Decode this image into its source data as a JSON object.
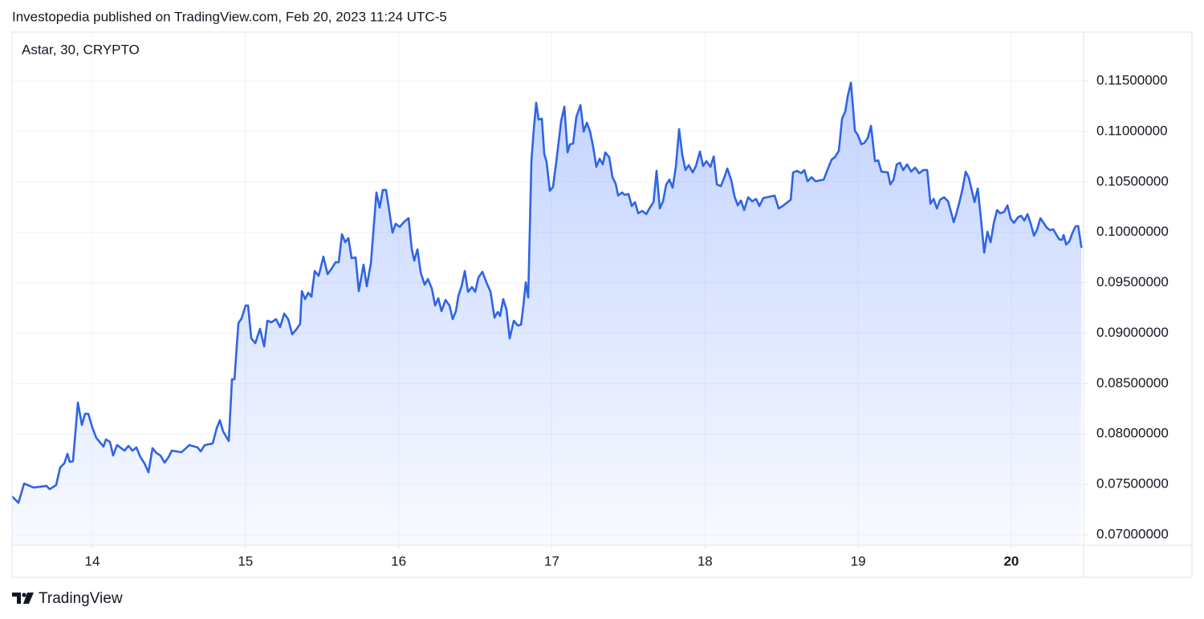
{
  "header": "Investopedia published on TradingView.com, Feb 20, 2023 11:24 UTC-5",
  "footer": "TradingView",
  "chart_data": {
    "type": "area",
    "title": "Astar, 30, CRYPTO",
    "color": "#2f64e6",
    "grid": true,
    "xlim": [
      13.476,
      20.472
    ],
    "ylim": [
      0.06897,
      0.11985
    ],
    "xticks": [
      14,
      15,
      16,
      17,
      18,
      19,
      20
    ],
    "yticks": [
      {
        "value": 0.07,
        "label": "0.07000000"
      },
      {
        "value": 0.075,
        "label": "0.07500000"
      },
      {
        "value": 0.08,
        "label": "0.08000000"
      },
      {
        "value": 0.085,
        "label": "0.08500000"
      },
      {
        "value": 0.09,
        "label": "0.09000000"
      },
      {
        "value": 0.095,
        "label": "0.09500000"
      },
      {
        "value": 0.1,
        "label": "0.10000000"
      },
      {
        "value": 0.105,
        "label": "0.10500000"
      },
      {
        "value": 0.11,
        "label": "0.11000000"
      },
      {
        "value": 0.115,
        "label": "0.11500000"
      }
    ],
    "x": [
      13.476,
      13.518,
      13.555,
      13.617,
      13.701,
      13.722,
      13.764,
      13.79,
      13.817,
      13.838,
      13.853,
      13.874,
      13.906,
      13.932,
      13.953,
      13.974,
      14.0,
      14.026,
      14.052,
      14.073,
      14.089,
      14.115,
      14.136,
      14.162,
      14.21,
      14.236,
      14.262,
      14.288,
      14.314,
      14.341,
      14.367,
      14.393,
      14.419,
      14.445,
      14.472,
      14.498,
      14.519,
      14.582,
      14.634,
      14.687,
      14.708,
      14.734,
      14.786,
      14.812,
      14.833,
      14.854,
      14.891,
      14.912,
      14.928,
      14.954,
      14.975,
      15.001,
      15.017,
      15.038,
      15.064,
      15.095,
      15.122,
      15.143,
      15.169,
      15.2,
      15.226,
      15.253,
      15.279,
      15.305,
      15.331,
      15.357,
      15.368,
      15.389,
      15.41,
      15.431,
      15.452,
      15.478,
      15.509,
      15.536,
      15.562,
      15.588,
      15.609,
      15.63,
      15.651,
      15.672,
      15.693,
      15.719,
      15.74,
      15.771,
      15.792,
      15.819,
      15.855,
      15.876,
      15.897,
      15.918,
      15.939,
      15.96,
      15.981,
      16.007,
      16.039,
      16.065,
      16.086,
      16.102,
      16.123,
      16.144,
      16.17,
      16.191,
      16.217,
      16.238,
      16.259,
      16.28,
      16.306,
      16.332,
      16.353,
      16.374,
      16.39,
      16.411,
      16.432,
      16.453,
      16.479,
      16.5,
      16.521,
      16.547,
      16.573,
      16.6,
      16.626,
      16.647,
      16.662,
      16.683,
      16.704,
      16.725,
      16.752,
      16.778,
      16.799,
      16.814,
      16.83,
      16.846,
      16.867,
      16.883,
      16.898,
      16.914,
      16.935,
      16.951,
      16.966,
      16.987,
      17.008,
      17.029,
      17.061,
      17.082,
      17.103,
      17.118,
      17.139,
      17.16,
      17.187,
      17.208,
      17.229,
      17.25,
      17.27,
      17.291,
      17.312,
      17.333,
      17.349,
      17.375,
      17.396,
      17.417,
      17.433,
      17.459,
      17.475,
      17.501,
      17.522,
      17.543,
      17.564,
      17.59,
      17.617,
      17.637,
      17.664,
      17.684,
      17.705,
      17.726,
      17.747,
      17.768,
      17.789,
      17.81,
      17.831,
      17.852,
      17.873,
      17.894,
      17.92,
      17.941,
      17.967,
      17.988,
      18.009,
      18.036,
      18.057,
      18.078,
      18.104,
      18.125,
      18.146,
      18.172,
      18.193,
      18.214,
      18.235,
      18.256,
      18.282,
      18.308,
      18.334,
      18.355,
      18.381,
      18.455,
      18.481,
      18.507,
      18.56,
      18.575,
      18.602,
      18.628,
      18.649,
      18.67,
      18.696,
      18.722,
      18.775,
      18.801,
      18.827,
      18.848,
      18.874,
      18.895,
      18.916,
      18.932,
      18.953,
      18.979,
      19.0,
      19.021,
      19.042,
      19.063,
      19.084,
      19.11,
      19.131,
      19.152,
      19.194,
      19.21,
      19.231,
      19.252,
      19.273,
      19.294,
      19.32,
      19.346,
      19.372,
      19.398,
      19.425,
      19.451,
      19.472,
      19.493,
      19.514,
      19.535,
      19.561,
      19.587,
      19.603,
      19.624,
      19.639,
      19.66,
      19.681,
      19.702,
      19.723,
      19.744,
      19.76,
      19.781,
      19.802,
      19.823,
      19.844,
      19.865,
      19.886,
      19.907,
      19.928,
      19.954,
      19.975,
      19.996,
      20.017,
      20.043,
      20.064,
      20.085,
      20.106,
      20.127,
      20.148,
      20.169,
      20.19,
      20.211,
      20.232,
      20.253,
      20.274,
      20.295,
      20.316,
      20.332,
      20.342,
      20.358,
      20.379,
      20.4,
      20.421,
      20.437,
      20.458
    ],
    "values": [
      0.07382,
      0.07318,
      0.07509,
      0.07469,
      0.07485,
      0.07453,
      0.07493,
      0.07668,
      0.07708,
      0.07803,
      0.07723,
      0.07731,
      0.08312,
      0.08089,
      0.082,
      0.082,
      0.08065,
      0.07962,
      0.07914,
      0.07875,
      0.07946,
      0.07922,
      0.07787,
      0.0789,
      0.07835,
      0.07882,
      0.07835,
      0.07867,
      0.07771,
      0.07708,
      0.0762,
      0.07859,
      0.07811,
      0.07787,
      0.07716,
      0.07771,
      0.07835,
      0.07819,
      0.0789,
      0.07867,
      0.07827,
      0.0789,
      0.07906,
      0.08057,
      0.08137,
      0.08026,
      0.0793,
      0.08542,
      0.08542,
      0.09099,
      0.09147,
      0.09274,
      0.09274,
      0.08948,
      0.089,
      0.09043,
      0.08868,
      0.09123,
      0.09107,
      0.09139,
      0.09059,
      0.09194,
      0.09139,
      0.08988,
      0.09035,
      0.09091,
      0.09417,
      0.09337,
      0.09401,
      0.09361,
      0.09616,
      0.09568,
      0.09759,
      0.09584,
      0.09639,
      0.09703,
      0.09703,
      0.09981,
      0.09902,
      0.09942,
      0.09743,
      0.09751,
      0.09417,
      0.09679,
      0.09465,
      0.09695,
      0.10395,
      0.10244,
      0.10419,
      0.10419,
      0.10212,
      0.09997,
      0.10085,
      0.10053,
      0.10108,
      0.1014,
      0.0983,
      0.09719,
      0.0983,
      0.096,
      0.0948,
      0.09536,
      0.09441,
      0.09274,
      0.09345,
      0.09218,
      0.09329,
      0.09274,
      0.09139,
      0.09218,
      0.09369,
      0.09465,
      0.09616,
      0.09409,
      0.09457,
      0.09409,
      0.09552,
      0.09608,
      0.09504,
      0.09409,
      0.09154,
      0.0921,
      0.0917,
      0.09337,
      0.09234,
      0.08948,
      0.09123,
      0.09075,
      0.09083,
      0.09266,
      0.09504,
      0.09353,
      0.10713,
      0.11031,
      0.11285,
      0.11118,
      0.11126,
      0.10776,
      0.10697,
      0.10411,
      0.1045,
      0.10697,
      0.11102,
      0.11245,
      0.10792,
      0.10872,
      0.1088,
      0.11142,
      0.11261,
      0.10999,
      0.11086,
      0.10999,
      0.10848,
      0.10649,
      0.10729,
      0.10673,
      0.10792,
      0.10744,
      0.10546,
      0.10482,
      0.10363,
      0.10395,
      0.10371,
      0.10379,
      0.1026,
      0.10299,
      0.10188,
      0.10212,
      0.1018,
      0.10236,
      0.10299,
      0.10609,
      0.10236,
      0.10307,
      0.10474,
      0.10522,
      0.10442,
      0.10649,
      0.11023,
      0.10768,
      0.10617,
      0.10665,
      0.10593,
      0.10657,
      0.108,
      0.10657,
      0.10705,
      0.10649,
      0.10752,
      0.10474,
      0.10458,
      0.10538,
      0.10633,
      0.10514,
      0.10355,
      0.10267,
      0.10315,
      0.1022,
      0.10347,
      0.10307,
      0.10331,
      0.1026,
      0.10339,
      0.10363,
      0.10236,
      0.1026,
      0.10323,
      0.10593,
      0.10609,
      0.10585,
      0.10617,
      0.10506,
      0.10546,
      0.10506,
      0.10522,
      0.10625,
      0.10721,
      0.10744,
      0.10808,
      0.11126,
      0.11198,
      0.11349,
      0.11484,
      0.11007,
      0.10959,
      0.10872,
      0.10888,
      0.10935,
      0.11055,
      0.10705,
      0.10713,
      0.10601,
      0.10593,
      0.10474,
      0.10522,
      0.10673,
      0.10689,
      0.10617,
      0.10673,
      0.10601,
      0.10641,
      0.10585,
      0.10617,
      0.10617,
      0.10283,
      0.10331,
      0.10236,
      0.10323,
      0.10347,
      0.10307,
      0.1022,
      0.10101,
      0.10172,
      0.10291,
      0.10426,
      0.10601,
      0.10538,
      0.10403,
      0.10299,
      0.10434,
      0.10132,
      0.09798,
      0.10005,
      0.09902,
      0.10093,
      0.1022,
      0.10188,
      0.10204,
      0.10267,
      0.10132,
      0.10093,
      0.10148,
      0.10164,
      0.10116,
      0.1018,
      0.10085,
      0.09965,
      0.10029,
      0.1014,
      0.10093,
      0.10045,
      0.10021,
      0.10029,
      0.09973,
      0.09926,
      0.09926,
      0.09973,
      0.09878,
      0.0991,
      0.09997,
      0.10061,
      0.10061,
      0.09846
    ]
  }
}
